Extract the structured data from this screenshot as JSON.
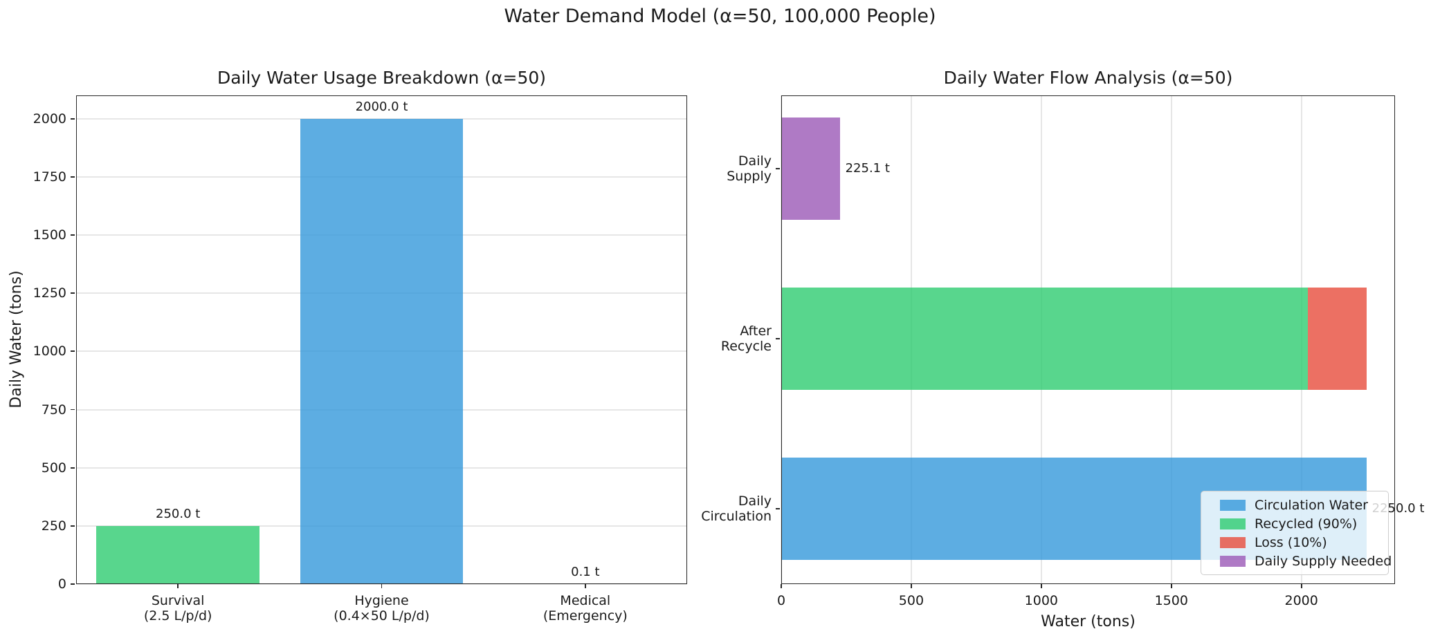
{
  "figure": {
    "suptitle": "Water Demand Model (α=50, 100,000 People)"
  },
  "colors": {
    "blue": "rgba(52,152,219,0.8)",
    "green": "rgba(46,204,113,0.8)",
    "red": "rgba(231,76,60,0.8)",
    "purple": "rgba(155,89,182,0.8)",
    "blue_hex": "#5cade2",
    "green_hex": "#58d68d",
    "red_hex": "#ec7063",
    "purple_hex": "#af7ac5",
    "spine": "#262626",
    "grid": "#e6e6e6",
    "text": "#1a1a1a",
    "legend_bg": "rgba(255,255,255,0.8)",
    "legend_border": "#cccccc"
  },
  "chart_data": [
    {
      "type": "bar",
      "title": "Daily Water Usage Breakdown (α=50)",
      "ylabel": "Daily Water (tons)",
      "categories": [
        [
          "Survival",
          "(2.5 L/p/d)"
        ],
        [
          "Hygiene",
          "(0.4×50 L/p/d)"
        ],
        [
          "Medical",
          "(Emergency)"
        ]
      ],
      "values": [
        250.0,
        2000.0,
        0.1
      ],
      "bar_labels": [
        "250.0 t",
        "2000.0 t",
        "0.1 t"
      ],
      "bar_colors": [
        "green",
        "blue",
        "red"
      ],
      "yticks": [
        0,
        250,
        500,
        750,
        1000,
        1250,
        1500,
        1750,
        2000
      ],
      "ylim": [
        0,
        2100
      ],
      "grid_axis": "y"
    },
    {
      "type": "stacked_barh",
      "title": "Daily Water Flow Analysis (α=50)",
      "xlabel": "Water (tons)",
      "categories": [
        [
          "Daily",
          "Supply"
        ],
        [
          "After",
          "Recycle"
        ],
        [
          "Daily",
          "Circulation"
        ]
      ],
      "bars": [
        {
          "name": "Daily Supply",
          "label": "225.1 t",
          "segments": [
            {
              "series": "Daily Supply Needed",
              "value": 225.1,
              "color": "purple"
            }
          ]
        },
        {
          "name": "After Recycle",
          "label": "",
          "segments": [
            {
              "series": "Recycled (90%)",
              "value": 2025.0,
              "color": "green"
            },
            {
              "series": "Loss (10%)",
              "value": 225.0,
              "color": "red"
            }
          ]
        },
        {
          "name": "Daily Circulation",
          "label": "2250.0 t",
          "segments": [
            {
              "series": "Circulation Water",
              "value": 2250.0,
              "color": "blue"
            }
          ]
        }
      ],
      "xticks": [
        0,
        500,
        1000,
        1500,
        2000
      ],
      "xlim": [
        0,
        2360
      ],
      "grid_axis": "x",
      "legend": {
        "position": "lower right",
        "entries": [
          {
            "label": "Circulation Water",
            "color": "blue"
          },
          {
            "label": "Recycled (90%)",
            "color": "green"
          },
          {
            "label": "Loss (10%)",
            "color": "red"
          },
          {
            "label": "Daily Supply Needed",
            "color": "purple"
          }
        ]
      }
    }
  ]
}
